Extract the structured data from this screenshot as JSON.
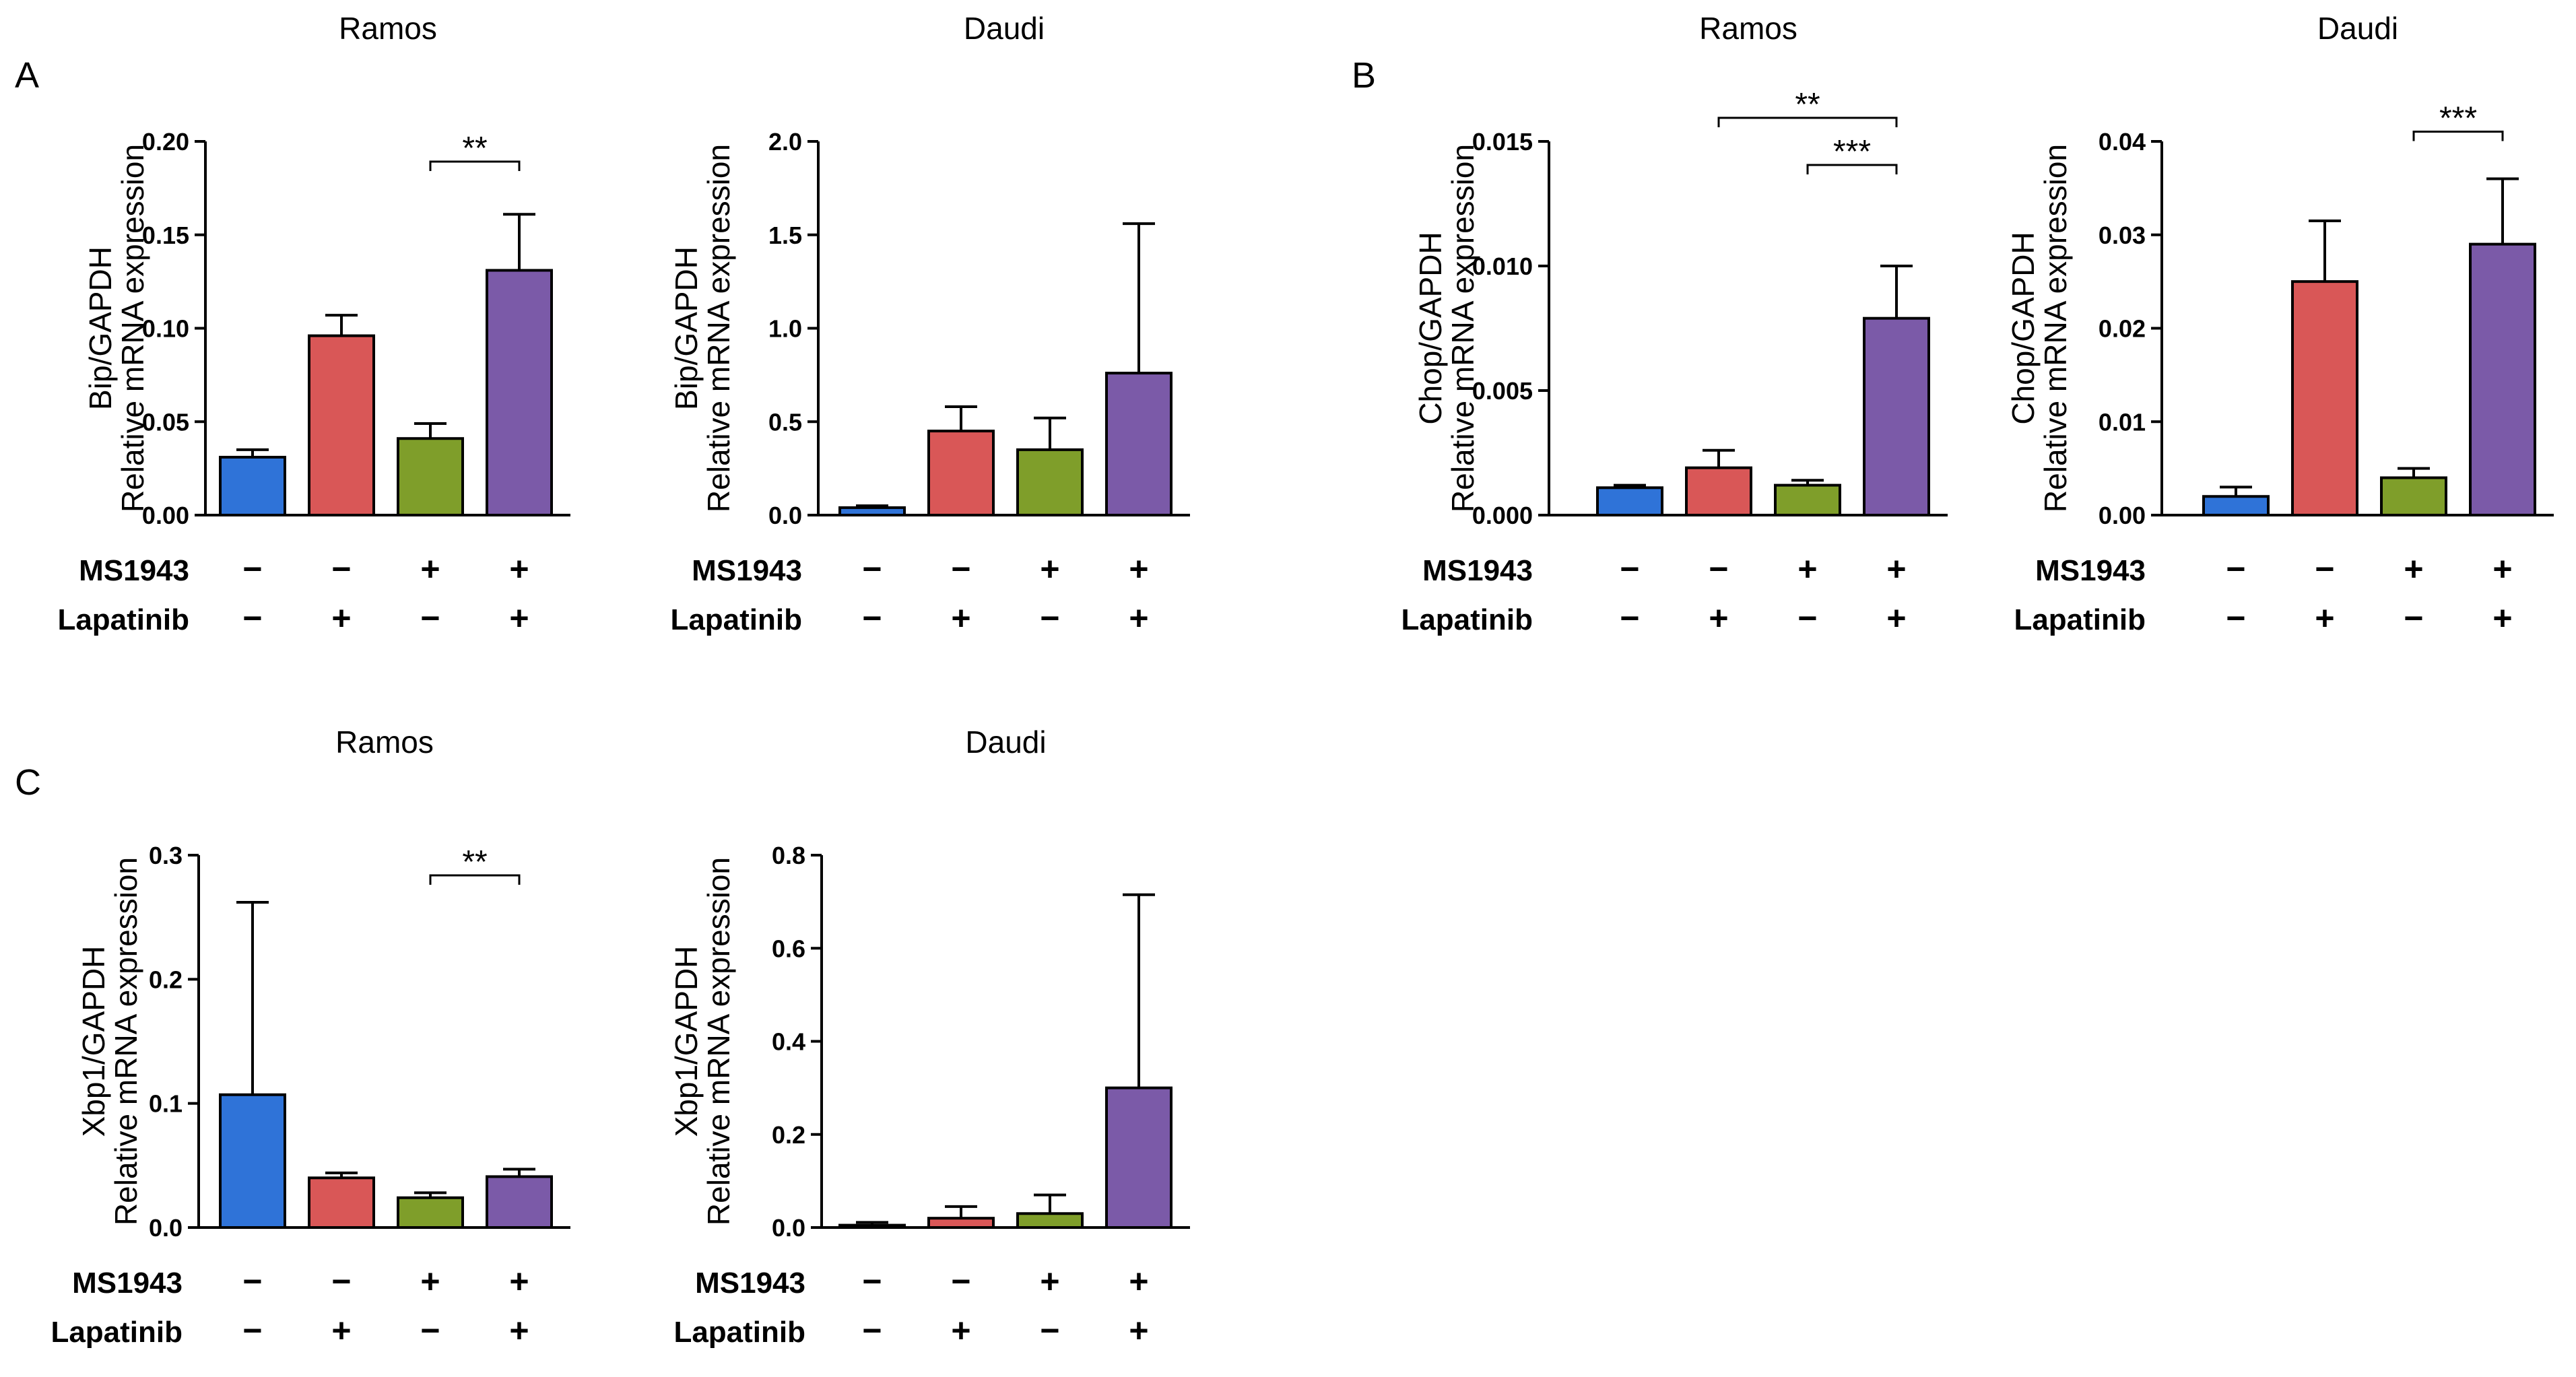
{
  "figure": {
    "panel_labels": [
      "A",
      "B",
      "C"
    ],
    "condition_rows": [
      "MS1943",
      "Lapatinib"
    ],
    "symbols": {
      "neg": "−",
      "pos": "+"
    },
    "colors": [
      "#2f73d8",
      "#d95757",
      "#7f9e2a",
      "#7b5aa8"
    ]
  },
  "chart_data": [
    {
      "panel": "A",
      "type": "bar",
      "title": "Ramos",
      "ylabel_lines": [
        "Bip/GAPDH",
        "Relative mRNA expression"
      ],
      "categories": [
        "MS1943 − / Lapatinib −",
        "MS1943 − / Lapatinib +",
        "MS1943 + / Lapatinib −",
        "MS1943 + / Lapatinib +"
      ],
      "ms1943": [
        "−",
        "−",
        "+",
        "+"
      ],
      "lapatinib": [
        "−",
        "+",
        "−",
        "+"
      ],
      "values": [
        0.031,
        0.096,
        0.041,
        0.131
      ],
      "errors": [
        0.004,
        0.011,
        0.008,
        0.03
      ],
      "ylim": [
        0,
        0.2
      ],
      "yticks": [
        "0.00",
        "0.05",
        "0.10",
        "0.15",
        "0.20"
      ],
      "significance": [
        {
          "from": 2,
          "to": 3,
          "label": "**"
        }
      ]
    },
    {
      "panel": "A",
      "type": "bar",
      "title": "Daudi",
      "ylabel_lines": [
        "Bip/GAPDH",
        "Relative mRNA expression"
      ],
      "categories": [
        "MS1943 − / Lapatinib −",
        "MS1943 − / Lapatinib +",
        "MS1943 + / Lapatinib −",
        "MS1943 + / Lapatinib +"
      ],
      "ms1943": [
        "−",
        "−",
        "+",
        "+"
      ],
      "lapatinib": [
        "−",
        "+",
        "−",
        "+"
      ],
      "values": [
        0.04,
        0.45,
        0.35,
        0.76
      ],
      "errors": [
        0.01,
        0.13,
        0.17,
        0.8
      ],
      "ylim": [
        0,
        2.0
      ],
      "yticks": [
        "0.0",
        "0.5",
        "1.0",
        "1.5",
        "2.0"
      ],
      "significance": []
    },
    {
      "panel": "B",
      "type": "bar",
      "title": "Ramos",
      "ylabel_lines": [
        "Chop/GAPDH",
        "Relative mRNA expression"
      ],
      "categories": [
        "MS1943 − / Lapatinib −",
        "MS1943 − / Lapatinib +",
        "MS1943 + / Lapatinib −",
        "MS1943 + / Lapatinib +"
      ],
      "ms1943": [
        "−",
        "−",
        "+",
        "+"
      ],
      "lapatinib": [
        "−",
        "+",
        "−",
        "+"
      ],
      "values": [
        0.0011,
        0.0019,
        0.0012,
        0.0079
      ],
      "errors": [
        0.0001,
        0.0007,
        0.0002,
        0.0021
      ],
      "ylim": [
        0,
        0.015
      ],
      "yticks": [
        "0.000",
        "0.005",
        "0.010",
        "0.015"
      ],
      "significance": [
        {
          "from": 1,
          "to": 3,
          "label": "**"
        },
        {
          "from": 2,
          "to": 3,
          "label": "***"
        }
      ]
    },
    {
      "panel": "B",
      "type": "bar",
      "title": "Daudi",
      "ylabel_lines": [
        "Chop/GAPDH",
        "Relative mRNA expression"
      ],
      "categories": [
        "MS1943 − / Lapatinib −",
        "MS1943 − / Lapatinib +",
        "MS1943 + / Lapatinib −",
        "MS1943 + / Lapatinib +"
      ],
      "ms1943": [
        "−",
        "−",
        "+",
        "+"
      ],
      "lapatinib": [
        "−",
        "+",
        "−",
        "+"
      ],
      "values": [
        0.002,
        0.025,
        0.004,
        0.029
      ],
      "errors": [
        0.001,
        0.0065,
        0.001,
        0.007
      ],
      "ylim": [
        0,
        0.04
      ],
      "yticks": [
        "0.00",
        "0.01",
        "0.02",
        "0.03",
        "0.04"
      ],
      "significance": [
        {
          "from": 2,
          "to": 3,
          "label": "***"
        }
      ]
    },
    {
      "panel": "C",
      "type": "bar",
      "title": "Ramos",
      "ylabel_lines": [
        "Xbp1/GAPDH",
        "Relative mRNA expression"
      ],
      "categories": [
        "MS1943 − / Lapatinib −",
        "MS1943 − / Lapatinib +",
        "MS1943 + / Lapatinib −",
        "MS1943 + / Lapatinib +"
      ],
      "ms1943": [
        "−",
        "−",
        "+",
        "+"
      ],
      "lapatinib": [
        "−",
        "+",
        "−",
        "+"
      ],
      "values": [
        0.107,
        0.04,
        0.024,
        0.041
      ],
      "errors": [
        0.155,
        0.004,
        0.004,
        0.006
      ],
      "ylim": [
        0,
        0.3
      ],
      "yticks": [
        "0.0",
        "0.1",
        "0.2",
        "0.3"
      ],
      "significance": [
        {
          "from": 2,
          "to": 3,
          "label": "**"
        }
      ]
    },
    {
      "panel": "C",
      "type": "bar",
      "title": "Daudi",
      "ylabel_lines": [
        "Xbp1/GAPDH",
        "Relative mRNA expression"
      ],
      "categories": [
        "MS1943 − / Lapatinib −",
        "MS1943 − / Lapatinib +",
        "MS1943 + / Lapatinib −",
        "MS1943 + / Lapatinib +"
      ],
      "ms1943": [
        "−",
        "−",
        "+",
        "+"
      ],
      "lapatinib": [
        "−",
        "+",
        "−",
        "+"
      ],
      "values": [
        0.005,
        0.02,
        0.03,
        0.3
      ],
      "errors": [
        0.006,
        0.025,
        0.04,
        0.415
      ],
      "ylim": [
        0,
        0.8
      ],
      "yticks": [
        "0.0",
        "0.2",
        "0.4",
        "0.6",
        "0.8"
      ],
      "significance": []
    }
  ]
}
